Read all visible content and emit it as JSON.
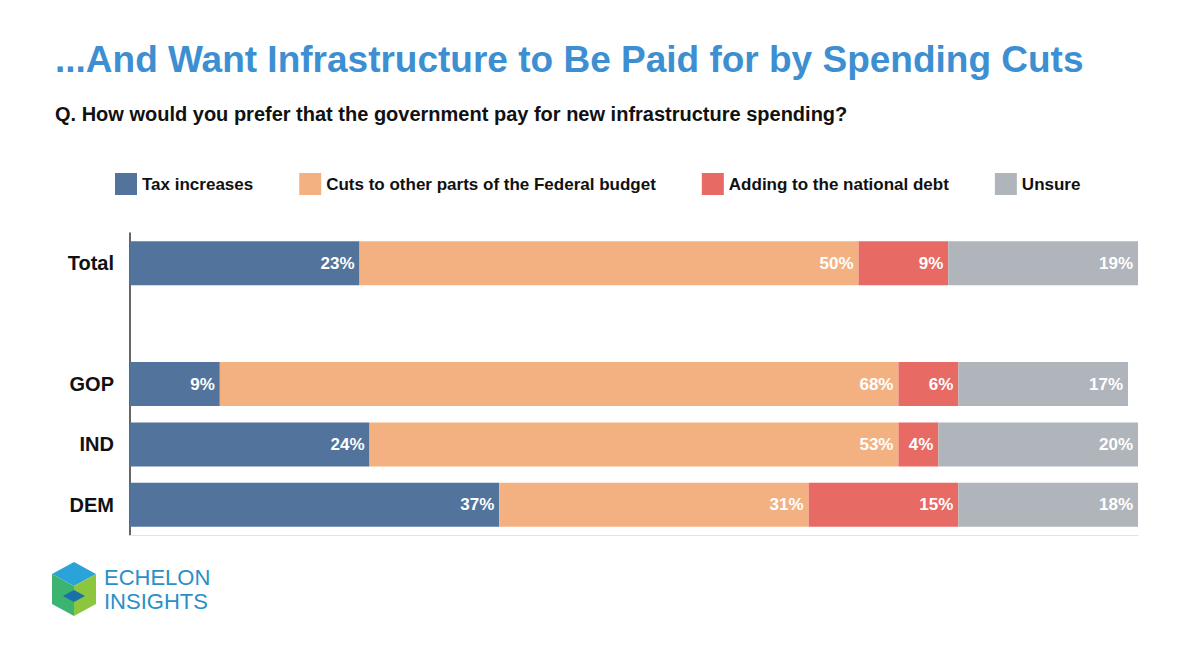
{
  "chart_data": {
    "type": "bar",
    "orientation": "horizontal",
    "stacked": true,
    "data_labels": true,
    "tick_labels": "y",
    "grid": false,
    "legend": "top",
    "title": "...And Want Infrastructure to Be Paid for by Spending Cuts",
    "subtitle": "Q. How would you prefer that the government pay for new infrastructure spending?",
    "annotations": [
      "ECHELON",
      "INSIGHTS"
    ],
    "categories": [
      "Total",
      null,
      "GOP",
      "IND",
      "DEM"
    ],
    "xlim": [
      0,
      101
    ],
    "series": [
      {
        "name": "Tax increases",
        "color": "#51739c",
        "values": [
          23,
          null,
          9,
          24,
          37
        ],
        "value_labels": [
          "23%",
          null,
          "9%",
          "24%",
          "37%"
        ]
      },
      {
        "name": "Cuts to other parts of the Federal budget",
        "color": "#f3b182",
        "values": [
          50,
          null,
          68,
          53,
          31
        ],
        "value_labels": [
          "50%",
          null,
          "68%",
          "53%",
          "31%"
        ]
      },
      {
        "name": "Adding to the national debt",
        "color": "#e86a64",
        "values": [
          9,
          null,
          6,
          4,
          15
        ],
        "value_labels": [
          "9%",
          null,
          "6%",
          "4%",
          "15%"
        ]
      },
      {
        "name": "Unsure",
        "color": "#b0b5bb",
        "values": [
          19,
          null,
          17,
          20,
          18
        ],
        "value_labels": [
          "19%",
          null,
          "17%",
          "20%",
          "18%"
        ]
      }
    ]
  }
}
